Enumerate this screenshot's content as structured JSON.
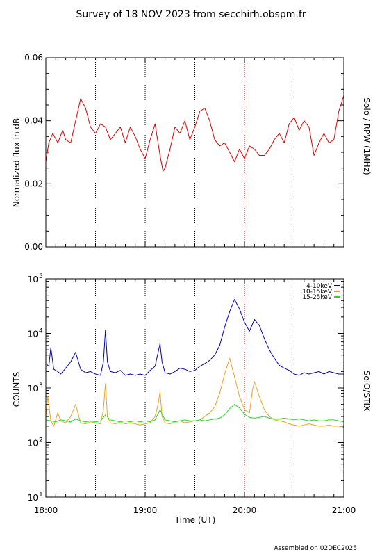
{
  "title": "Survey of 18 NOV 2023 from secchirh.obspm.fr",
  "footer": "Assembled on 02DEC2025",
  "time_axis": {
    "label": "Time (UT)",
    "tick_labels": [
      "18:00",
      "19:00",
      "20:00",
      "21:00"
    ],
    "tick_hours": [
      18,
      19,
      20,
      21
    ],
    "range_hours": [
      18,
      21
    ],
    "dotted_lines_hours": [
      18.5,
      19.0,
      19.5,
      20.0,
      20.5
    ],
    "minor_step_hours": 0.1
  },
  "colors": {
    "red": "#dd0000",
    "blue": "#0000b0",
    "orange": "#f0a020",
    "green": "#22dd22",
    "dotted_black": "#000000",
    "dotted_red": "#cc0000"
  },
  "chart_data": [
    {
      "type": "line",
      "ylabel": "Normalized flux in dB",
      "right_label": "Solo / RPW (1MHz)",
      "ylim": [
        0,
        0.06
      ],
      "yticks": [
        0.0,
        0.02,
        0.04,
        0.06
      ],
      "ytick_labels": [
        "0.00",
        "0.02",
        "0.04",
        "0.06"
      ],
      "grid": false,
      "series": [
        {
          "color": "#dd0000",
          "x": [
            18.0,
            18.03,
            18.07,
            18.12,
            18.17,
            18.2,
            18.25,
            18.3,
            18.35,
            18.4,
            18.45,
            18.5,
            18.55,
            18.6,
            18.65,
            18.7,
            18.75,
            18.8,
            18.85,
            18.9,
            18.95,
            19.0,
            19.05,
            19.1,
            19.15,
            19.18,
            19.2,
            19.25,
            19.3,
            19.35,
            19.4,
            19.45,
            19.5,
            19.55,
            19.6,
            19.65,
            19.7,
            19.75,
            19.8,
            19.85,
            19.9,
            19.95,
            20.0,
            20.05,
            20.1,
            20.15,
            20.2,
            20.25,
            20.3,
            20.35,
            20.4,
            20.45,
            20.5,
            20.55,
            20.6,
            20.65,
            20.7,
            20.75,
            20.8,
            20.85,
            20.9,
            20.95,
            21.0
          ],
          "values": [
            0.027,
            0.033,
            0.036,
            0.033,
            0.037,
            0.034,
            0.033,
            0.04,
            0.047,
            0.044,
            0.038,
            0.036,
            0.039,
            0.038,
            0.034,
            0.036,
            0.038,
            0.033,
            0.038,
            0.035,
            0.031,
            0.028,
            0.034,
            0.039,
            0.029,
            0.024,
            0.025,
            0.031,
            0.038,
            0.036,
            0.04,
            0.034,
            0.038,
            0.043,
            0.044,
            0.04,
            0.034,
            0.032,
            0.033,
            0.03,
            0.027,
            0.031,
            0.028,
            0.032,
            0.031,
            0.029,
            0.029,
            0.031,
            0.034,
            0.036,
            0.033,
            0.039,
            0.041,
            0.037,
            0.04,
            0.038,
            0.029,
            0.033,
            0.036,
            0.033,
            0.034,
            0.043,
            0.048
          ]
        }
      ]
    },
    {
      "type": "line",
      "ylabel": "COUNTS",
      "right_label": "SolO/STIX",
      "yscale": "log",
      "ylim": [
        10,
        100000
      ],
      "ytick_values": [
        10,
        100,
        1000,
        10000,
        100000
      ],
      "ytick_base": [
        "10",
        "10",
        "10",
        "10",
        "10"
      ],
      "ytick_exp": [
        "1",
        "2",
        "3",
        "4",
        "5"
      ],
      "legend_position": "top-right",
      "grid": false,
      "series": [
        {
          "name": "4-10keV",
          "color": "#0000b0",
          "x": [
            18.0,
            18.03,
            18.05,
            18.08,
            18.12,
            18.15,
            18.2,
            18.25,
            18.3,
            18.35,
            18.4,
            18.45,
            18.5,
            18.55,
            18.58,
            18.6,
            18.62,
            18.65,
            18.7,
            18.75,
            18.8,
            18.85,
            18.9,
            18.95,
            19.0,
            19.05,
            19.1,
            19.15,
            19.17,
            19.2,
            19.25,
            19.3,
            19.35,
            19.4,
            19.45,
            19.5,
            19.55,
            19.6,
            19.65,
            19.7,
            19.75,
            19.8,
            19.85,
            19.9,
            19.95,
            20.0,
            20.05,
            20.1,
            20.15,
            20.2,
            20.25,
            20.3,
            20.35,
            20.4,
            20.45,
            20.5,
            20.55,
            20.6,
            20.65,
            20.7,
            20.75,
            20.8,
            20.85,
            20.9,
            20.95,
            21.0
          ],
          "values": [
            2800,
            2500,
            5500,
            2200,
            2000,
            1800,
            2300,
            3000,
            4500,
            2200,
            1900,
            2000,
            1800,
            1700,
            3000,
            11500,
            3000,
            2000,
            1900,
            2100,
            1700,
            1800,
            1700,
            1800,
            1700,
            2100,
            2500,
            6500,
            3000,
            1900,
            1800,
            2000,
            2300,
            2200,
            2000,
            2100,
            2500,
            2800,
            3200,
            4000,
            6000,
            13000,
            25000,
            42000,
            28000,
            16000,
            11000,
            18000,
            14000,
            8000,
            5000,
            3500,
            2600,
            2300,
            2100,
            1800,
            1700,
            1900,
            1800,
            1900,
            2000,
            1800,
            2000,
            1900,
            1800,
            1800
          ]
        },
        {
          "name": "10-15keV",
          "color": "#f0a020",
          "x": [
            18.0,
            18.02,
            18.05,
            18.08,
            18.12,
            18.15,
            18.2,
            18.25,
            18.3,
            18.35,
            18.4,
            18.45,
            18.5,
            18.55,
            18.58,
            18.6,
            18.62,
            18.65,
            18.7,
            18.75,
            18.8,
            18.85,
            18.9,
            18.95,
            19.0,
            19.05,
            19.1,
            19.13,
            19.15,
            19.17,
            19.2,
            19.25,
            19.3,
            19.35,
            19.4,
            19.45,
            19.5,
            19.55,
            19.6,
            19.65,
            19.7,
            19.75,
            19.8,
            19.85,
            19.9,
            19.95,
            20.0,
            20.05,
            20.08,
            20.1,
            20.15,
            20.2,
            20.25,
            20.3,
            20.35,
            20.4,
            20.45,
            20.5,
            20.55,
            20.6,
            20.65,
            20.7,
            20.75,
            20.8,
            20.85,
            20.9,
            20.95,
            21.0
          ],
          "values": [
            300,
            700,
            250,
            200,
            350,
            250,
            230,
            300,
            500,
            230,
            220,
            240,
            230,
            220,
            400,
            1200,
            300,
            230,
            220,
            240,
            220,
            230,
            220,
            210,
            220,
            230,
            300,
            500,
            850,
            300,
            230,
            220,
            240,
            250,
            230,
            240,
            250,
            260,
            300,
            350,
            450,
            800,
            1800,
            3500,
            1600,
            700,
            400,
            350,
            900,
            1300,
            700,
            400,
            300,
            260,
            250,
            240,
            220,
            210,
            200,
            210,
            220,
            210,
            200,
            200,
            210,
            200,
            200,
            190
          ]
        },
        {
          "name": "15-25keV",
          "color": "#22dd22",
          "x": [
            18.0,
            18.05,
            18.1,
            18.15,
            18.2,
            18.25,
            18.3,
            18.35,
            18.4,
            18.45,
            18.5,
            18.55,
            18.6,
            18.65,
            18.7,
            18.75,
            18.8,
            18.85,
            18.9,
            18.95,
            19.0,
            19.05,
            19.1,
            19.15,
            19.2,
            19.25,
            19.3,
            19.35,
            19.4,
            19.45,
            19.5,
            19.55,
            19.6,
            19.65,
            19.7,
            19.75,
            19.8,
            19.85,
            19.9,
            19.95,
            20.0,
            20.05,
            20.1,
            20.15,
            20.2,
            20.25,
            20.3,
            20.35,
            20.4,
            20.45,
            20.5,
            20.55,
            20.6,
            20.65,
            20.7,
            20.75,
            20.8,
            20.85,
            20.9,
            20.95,
            21.0
          ],
          "values": [
            260,
            250,
            240,
            260,
            250,
            240,
            270,
            250,
            240,
            250,
            240,
            250,
            320,
            260,
            250,
            240,
            250,
            240,
            250,
            240,
            250,
            240,
            260,
            400,
            260,
            250,
            240,
            250,
            260,
            250,
            250,
            260,
            250,
            260,
            270,
            280,
            320,
            420,
            500,
            430,
            330,
            290,
            280,
            290,
            300,
            280,
            270,
            270,
            280,
            270,
            260,
            270,
            260,
            250,
            260,
            250,
            250,
            260,
            260,
            250,
            240
          ]
        }
      ]
    }
  ]
}
